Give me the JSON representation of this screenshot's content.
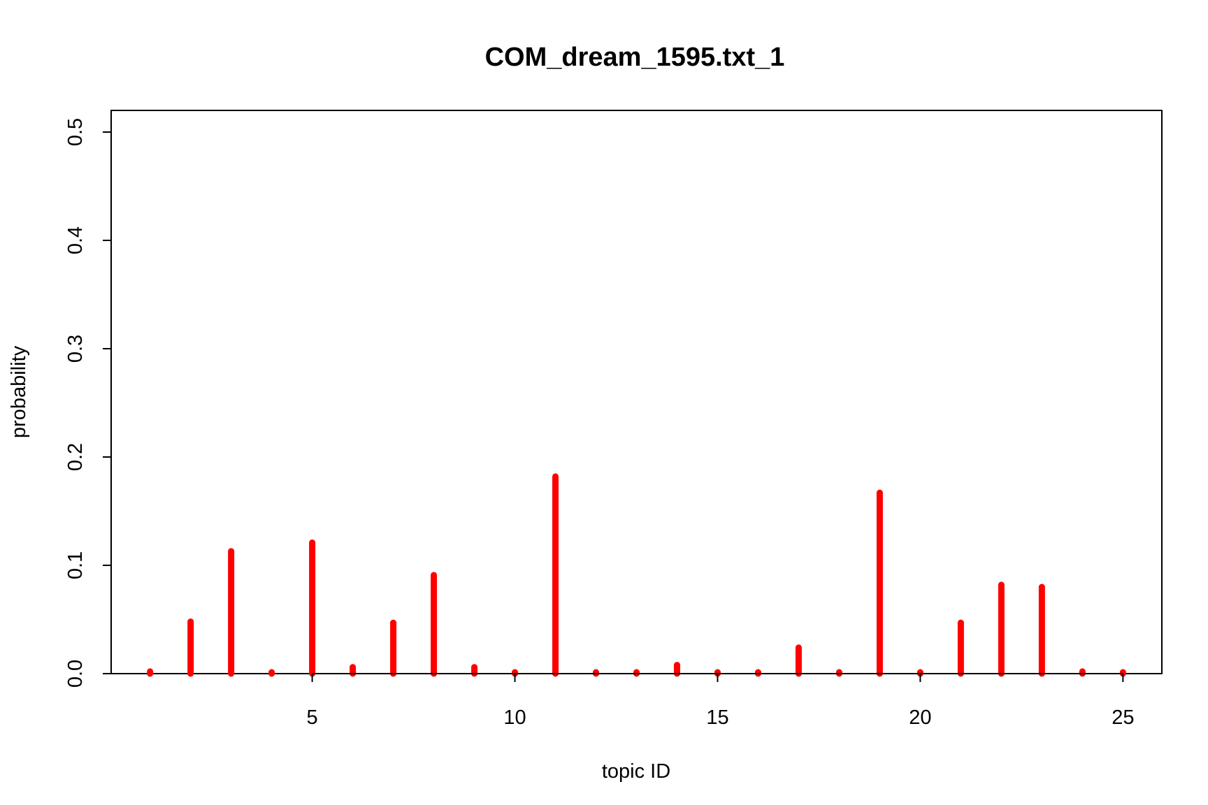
{
  "chart_data": {
    "type": "bar",
    "title": "COM_dream_1595.txt_1",
    "xlabel": "topic ID",
    "ylabel": "probability",
    "xlim": [
      0.04,
      25.96
    ],
    "ylim": [
      0,
      0.52
    ],
    "x_ticks": [
      5,
      10,
      15,
      20,
      25
    ],
    "y_ticks": [
      0.0,
      0.1,
      0.2,
      0.3,
      0.4,
      0.5
    ],
    "x_tick_labels": [
      "5",
      "10",
      "15",
      "20",
      "25"
    ],
    "y_tick_labels": [
      "0.0",
      "0.1",
      "0.2",
      "0.3",
      "0.4",
      "0.5"
    ],
    "grid": false,
    "color": "#ff0000",
    "x": [
      1,
      2,
      3,
      4,
      5,
      6,
      7,
      8,
      9,
      10,
      11,
      12,
      13,
      14,
      15,
      16,
      17,
      18,
      19,
      20,
      21,
      22,
      23,
      24,
      25
    ],
    "values": [
      0.002,
      0.048,
      0.113,
      0.001,
      0.121,
      0.006,
      0.047,
      0.091,
      0.006,
      0.001,
      0.182,
      0.001,
      0.001,
      0.008,
      0.001,
      0.001,
      0.024,
      0.001,
      0.167,
      0.001,
      0.047,
      0.082,
      0.08,
      0.002,
      0.001
    ]
  }
}
